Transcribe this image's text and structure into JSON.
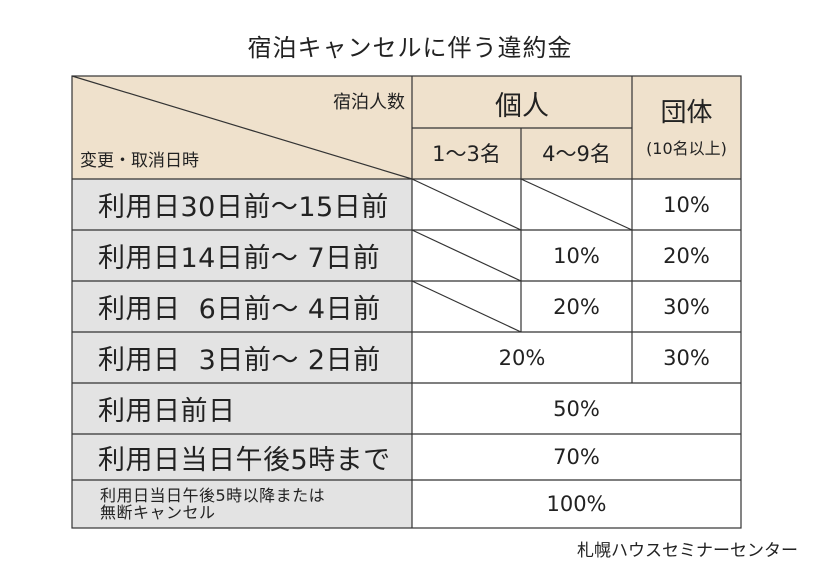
{
  "title": "宿泊キャンセルに伴う違約金",
  "header": {
    "corner_top": "宿泊人数",
    "corner_bottom": "変更・取消日時",
    "individual": "個人",
    "group": "団体",
    "group_note": "(10名以上)",
    "sub_small": "1〜3名",
    "sub_large": "4〜9名"
  },
  "rows": [
    {
      "label": "利用日30日前〜15日前",
      "small": "",
      "large": "",
      "group": "10%"
    },
    {
      "label": "利用日14日前〜 7日前",
      "small": "",
      "large": "10%",
      "group": "20%"
    },
    {
      "label": "利用日  6日前〜 4日前",
      "small": "",
      "large": "20%",
      "group": "30%"
    },
    {
      "label": "利用日  3日前〜 2日前",
      "individual": "20%",
      "group": "30%"
    },
    {
      "label": "利用日前日",
      "all": "50%"
    },
    {
      "label": "利用日当日午後5時まで",
      "all": "70%"
    },
    {
      "label_lines": [
        "利用日当日午後5時以降または",
        "無断キャンセル"
      ],
      "all": "100%"
    }
  ],
  "footer": "札幌ハウスセミナーセンター"
}
